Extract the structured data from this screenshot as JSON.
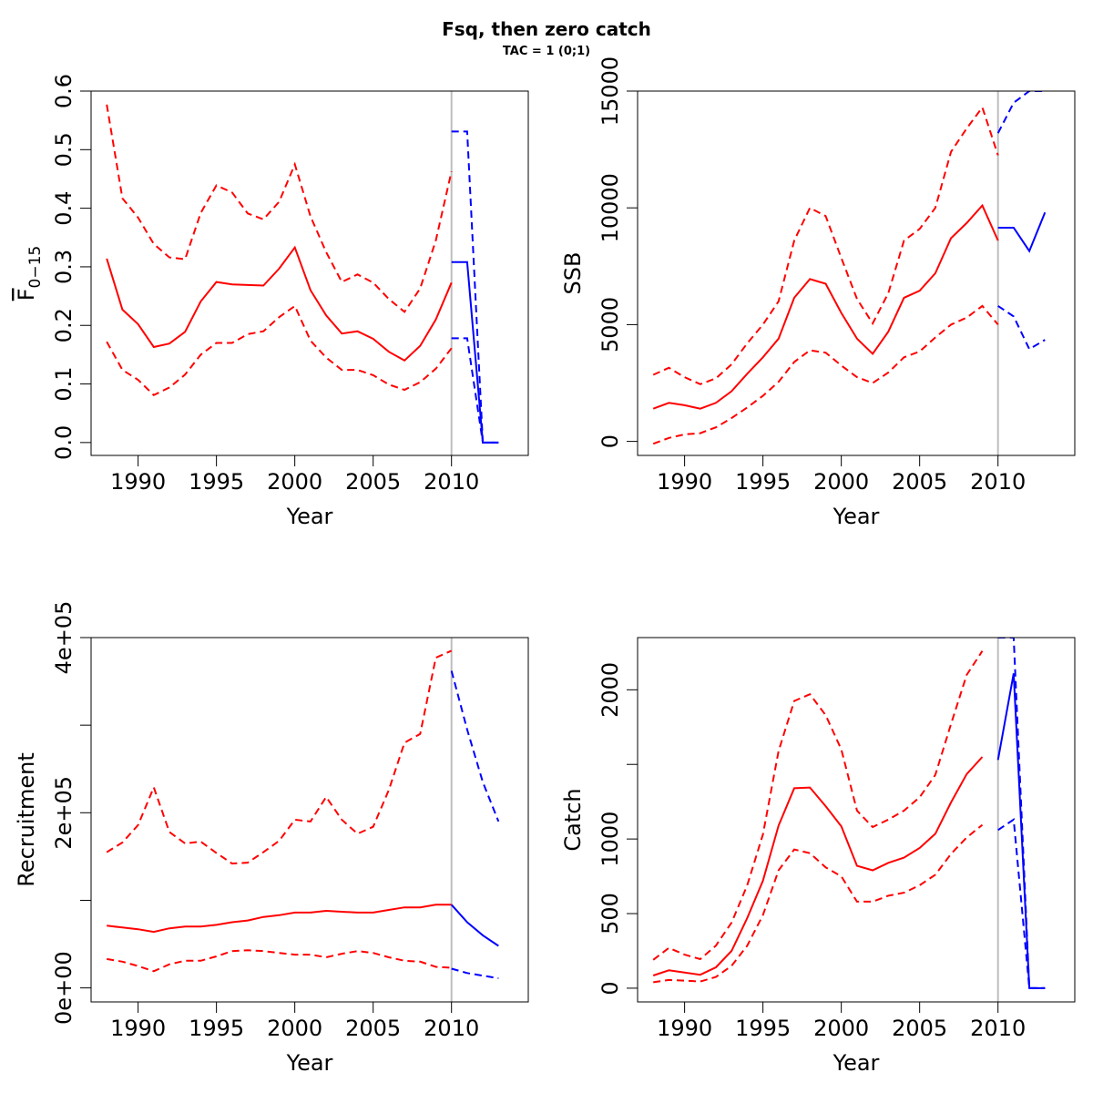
{
  "figure": {
    "title": "Fsq, then zero catch",
    "subtitle": "TAC = 1 (0;1)"
  },
  "colors": {
    "historic": "#ff0000",
    "projection": "#0000ff",
    "divider": "#bebebe"
  },
  "chart_data": [
    {
      "id": "fbar",
      "type": "line",
      "xlabel": "Year",
      "ylabel_main": "F",
      "ylabel_sub": "0−15",
      "xlim": [
        1987,
        2014.9
      ],
      "ylim": [
        -0.022,
        0.6
      ],
      "xticks": [
        1990,
        1995,
        2000,
        2005,
        2010
      ],
      "yticks": [
        0.0,
        0.1,
        0.2,
        0.3,
        0.4,
        0.5,
        0.6
      ],
      "ytick_labels": [
        "0.0",
        "0.1",
        "0.2",
        "0.3",
        "0.4",
        "0.5",
        "0.6"
      ],
      "divider_x": 2010,
      "series": [
        {
          "role": "historic",
          "linetype": "solid",
          "x": [
            1988,
            1989,
            1990,
            1991,
            1992,
            1993,
            1994,
            1995,
            1996,
            1997,
            1998,
            1999,
            2000,
            2001,
            2002,
            2003,
            2004,
            2005,
            2006,
            2007,
            2008,
            2009,
            2010
          ],
          "y": [
            0.314,
            0.227,
            0.202,
            0.163,
            0.169,
            0.189,
            0.241,
            0.274,
            0.27,
            0.269,
            0.268,
            0.297,
            0.333,
            0.26,
            0.217,
            0.186,
            0.19,
            0.177,
            0.155,
            0.14,
            0.165,
            0.21,
            0.273
          ]
        },
        {
          "role": "historic",
          "linetype": "dashed",
          "x": [
            1988,
            1989,
            1990,
            1991,
            1992,
            1993,
            1994,
            1995,
            1996,
            1997,
            1998,
            1999,
            2000,
            2001,
            2002,
            2003,
            2004,
            2005,
            2006,
            2007,
            2008,
            2009,
            2010
          ],
          "y": [
            0.577,
            0.417,
            0.384,
            0.339,
            0.316,
            0.313,
            0.392,
            0.439,
            0.427,
            0.391,
            0.381,
            0.411,
            0.475,
            0.386,
            0.325,
            0.274,
            0.287,
            0.273,
            0.245,
            0.223,
            0.263,
            0.345,
            0.463
          ]
        },
        {
          "role": "historic",
          "linetype": "dashed",
          "x": [
            1988,
            1989,
            1990,
            1991,
            1992,
            1993,
            1994,
            1995,
            1996,
            1997,
            1998,
            1999,
            2000,
            2001,
            2002,
            2003,
            2004,
            2005,
            2006,
            2007,
            2008,
            2009,
            2010
          ],
          "y": [
            0.172,
            0.124,
            0.107,
            0.081,
            0.094,
            0.116,
            0.15,
            0.17,
            0.17,
            0.185,
            0.19,
            0.214,
            0.233,
            0.174,
            0.145,
            0.124,
            0.124,
            0.115,
            0.099,
            0.09,
            0.103,
            0.126,
            0.161
          ]
        },
        {
          "role": "projection",
          "linetype": "solid",
          "x": [
            2010,
            2011,
            2012,
            2013
          ],
          "y": [
            0.308,
            0.308,
            0.0,
            0.0
          ]
        },
        {
          "role": "projection",
          "linetype": "dashed",
          "x": [
            2010,
            2011,
            2012,
            2013
          ],
          "y": [
            0.531,
            0.531,
            0.0,
            0.0
          ]
        },
        {
          "role": "projection",
          "linetype": "dashed",
          "x": [
            2010,
            2011,
            2012,
            2013
          ],
          "y": [
            0.178,
            0.178,
            0.0,
            0.0
          ]
        }
      ]
    },
    {
      "id": "ssb",
      "type": "line",
      "xlabel": "Year",
      "ylabel_main": "SSB",
      "ylabel_sub": "",
      "xlim": [
        1987,
        2014.9
      ],
      "ylim": [
        -600,
        15000
      ],
      "xticks": [
        1990,
        1995,
        2000,
        2005,
        2010
      ],
      "yticks": [
        0,
        5000,
        10000,
        15000
      ],
      "ytick_labels": [
        "0",
        "5000",
        "10000",
        "15000"
      ],
      "divider_x": 2010,
      "series": [
        {
          "role": "historic",
          "linetype": "solid",
          "x": [
            1988,
            1989,
            1990,
            1991,
            1992,
            1993,
            1994,
            1995,
            1996,
            1997,
            1998,
            1999,
            2000,
            2001,
            2002,
            2003,
            2004,
            2005,
            2006,
            2007,
            2008,
            2009,
            2010
          ],
          "y": [
            1400,
            1650,
            1550,
            1400,
            1650,
            2150,
            2900,
            3600,
            4400,
            6150,
            6950,
            6750,
            5500,
            4400,
            3750,
            4700,
            6150,
            6450,
            7200,
            8700,
            9350,
            10100,
            8600
          ]
        },
        {
          "role": "historic",
          "linetype": "dashed",
          "x": [
            1988,
            1989,
            1990,
            1991,
            1992,
            1993,
            1994,
            1995,
            1996,
            1997,
            1998,
            1999,
            2000,
            2001,
            2002,
            2003,
            2004,
            2005,
            2006,
            2007,
            2008,
            2009,
            2010
          ],
          "y": [
            2850,
            3150,
            2750,
            2450,
            2700,
            3300,
            4200,
            5000,
            6000,
            8600,
            10000,
            9650,
            7850,
            6100,
            5050,
            6350,
            8600,
            9100,
            10000,
            12400,
            13400,
            14300,
            12250
          ]
        },
        {
          "role": "historic",
          "linetype": "dashed",
          "x": [
            1988,
            1989,
            1990,
            1991,
            1992,
            1993,
            1994,
            1995,
            1996,
            1997,
            1998,
            1999,
            2000,
            2001,
            2002,
            2003,
            2004,
            2005,
            2006,
            2007,
            2008,
            2009,
            2010
          ],
          "y": [
            -100,
            150,
            300,
            350,
            600,
            1000,
            1450,
            1950,
            2550,
            3400,
            3900,
            3800,
            3250,
            2750,
            2500,
            2950,
            3600,
            3850,
            4450,
            5000,
            5300,
            5800,
            5000
          ]
        },
        {
          "role": "projection",
          "linetype": "solid",
          "x": [
            2010,
            2011,
            2012,
            2013
          ],
          "y": [
            9150,
            9150,
            8150,
            9800
          ]
        },
        {
          "role": "projection",
          "linetype": "dashed",
          "x": [
            2010,
            2011,
            2012,
            2013
          ],
          "y": [
            13200,
            14500,
            15000,
            15000
          ]
        },
        {
          "role": "projection",
          "linetype": "dashed",
          "x": [
            2010,
            2011,
            2012,
            2013
          ],
          "y": [
            5800,
            5350,
            3950,
            4350
          ]
        }
      ]
    },
    {
      "id": "recruitment",
      "type": "line",
      "xlabel": "Year",
      "ylabel_main": "Recruitment",
      "ylabel_sub": "",
      "xlim": [
        1987,
        2014.9
      ],
      "ylim": [
        -16000,
        400000
      ],
      "xticks": [
        1990,
        1995,
        2000,
        2005,
        2010
      ],
      "yticks": [
        0,
        100000,
        200000,
        300000,
        400000
      ],
      "ytick_labels": [
        "0e+00",
        "",
        "2e+05",
        "",
        "4e+05"
      ],
      "divider_x": 2010,
      "series": [
        {
          "role": "historic",
          "linetype": "solid",
          "x": [
            1988,
            1989,
            1990,
            1991,
            1992,
            1993,
            1994,
            1995,
            1996,
            1997,
            1998,
            1999,
            2000,
            2001,
            2002,
            2003,
            2004,
            2005,
            2006,
            2007,
            2008,
            2009,
            2010
          ],
          "y": [
            71000,
            69000,
            67000,
            64000,
            68000,
            70000,
            70000,
            72000,
            75000,
            77000,
            81000,
            83000,
            86000,
            86000,
            88000,
            87000,
            86000,
            86000,
            89000,
            92000,
            92000,
            95000,
            95000
          ]
        },
        {
          "role": "historic",
          "linetype": "dashed",
          "x": [
            1988,
            1989,
            1990,
            1991,
            1992,
            1993,
            1994,
            1995,
            1996,
            1997,
            1998,
            1999,
            2000,
            2001,
            2002,
            2003,
            2004,
            2005,
            2006,
            2007,
            2008,
            2009,
            2010
          ],
          "y": [
            155000,
            166000,
            186000,
            229000,
            178000,
            165000,
            167000,
            154000,
            142000,
            143000,
            155000,
            168000,
            192000,
            190000,
            218000,
            192000,
            176000,
            184000,
            226000,
            280000,
            290000,
            377000,
            385000
          ]
        },
        {
          "role": "historic",
          "linetype": "dashed",
          "x": [
            1988,
            1989,
            1990,
            1991,
            1992,
            1993,
            1994,
            1995,
            1996,
            1997,
            1998,
            1999,
            2000,
            2001,
            2002,
            2003,
            2004,
            2005,
            2006,
            2007,
            2008,
            2009,
            2010
          ],
          "y": [
            33000,
            30000,
            25000,
            19000,
            27000,
            31000,
            31000,
            36000,
            42000,
            43000,
            42000,
            40000,
            38000,
            38000,
            35000,
            39000,
            42000,
            40000,
            35000,
            31000,
            30000,
            24000,
            23000
          ]
        },
        {
          "role": "projection",
          "linetype": "solid",
          "x": [
            2010,
            2011,
            2012,
            2013
          ],
          "y": [
            95000,
            75000,
            60000,
            48000
          ]
        },
        {
          "role": "projection",
          "linetype": "dashed",
          "x": [
            2010,
            2011,
            2012,
            2013
          ],
          "y": [
            362000,
            295000,
            235000,
            190000
          ]
        },
        {
          "role": "projection",
          "linetype": "dashed",
          "x": [
            2010,
            2011,
            2012,
            2013
          ],
          "y": [
            22000,
            17000,
            14000,
            11000
          ]
        }
      ]
    },
    {
      "id": "catch",
      "type": "line",
      "xlabel": "Year",
      "ylabel_main": "Catch",
      "ylabel_sub": "",
      "xlim": [
        1987,
        2014.9
      ],
      "ylim": [
        -92,
        2350
      ],
      "xticks": [
        1990,
        1995,
        2000,
        2005,
        2010
      ],
      "yticks": [
        0,
        500,
        1000,
        1500,
        2000
      ],
      "ytick_labels": [
        "0",
        "500",
        "1000",
        "",
        "2000"
      ],
      "divider_x": 2010,
      "series": [
        {
          "role": "historic",
          "linetype": "solid",
          "x": [
            1988,
            1989,
            1990,
            1991,
            1992,
            1993,
            1994,
            1995,
            1996,
            1997,
            1998,
            1999,
            2000,
            2001,
            2002,
            2003,
            2004,
            2005,
            2006,
            2007,
            2008,
            2009
          ],
          "y": [
            85,
            120,
            105,
            90,
            140,
            250,
            470,
            720,
            1090,
            1340,
            1345,
            1220,
            1085,
            820,
            790,
            840,
            875,
            940,
            1035,
            1245,
            1435,
            1550
          ]
        },
        {
          "role": "historic",
          "linetype": "dashed",
          "x": [
            1988,
            1989,
            1990,
            1991,
            1992,
            1993,
            1994,
            1995,
            1996,
            1997,
            1998,
            1999,
            2000,
            2001,
            2002,
            2003,
            2004,
            2005,
            2006,
            2007,
            2008,
            2009
          ],
          "y": [
            190,
            270,
            225,
            195,
            285,
            440,
            690,
            1030,
            1590,
            1925,
            1970,
            1830,
            1600,
            1190,
            1080,
            1130,
            1190,
            1280,
            1430,
            1770,
            2100,
            2260
          ]
        },
        {
          "role": "historic",
          "linetype": "dashed",
          "x": [
            1988,
            1989,
            1990,
            1991,
            1992,
            1993,
            1994,
            1995,
            1996,
            1997,
            1998,
            1999,
            2000,
            2001,
            2002,
            2003,
            2004,
            2005,
            2006,
            2007,
            2008,
            2009
          ],
          "y": [
            40,
            55,
            50,
            45,
            75,
            150,
            285,
            490,
            790,
            930,
            905,
            810,
            750,
            580,
            580,
            620,
            640,
            690,
            760,
            900,
            1010,
            1095
          ]
        },
        {
          "role": "projection",
          "linetype": "solid",
          "x": [
            2010,
            2011,
            2012,
            2013
          ],
          "y": [
            1530,
            2110,
            0,
            0
          ]
        },
        {
          "role": "projection",
          "linetype": "dashed",
          "x": [
            2010,
            2011,
            2012,
            2013
          ],
          "y": [
            2350,
            2350,
            0,
            0
          ]
        },
        {
          "role": "projection",
          "linetype": "dashed",
          "x": [
            2010,
            2011,
            2012,
            2013
          ],
          "y": [
            1060,
            1130,
            0,
            0
          ]
        }
      ]
    }
  ]
}
